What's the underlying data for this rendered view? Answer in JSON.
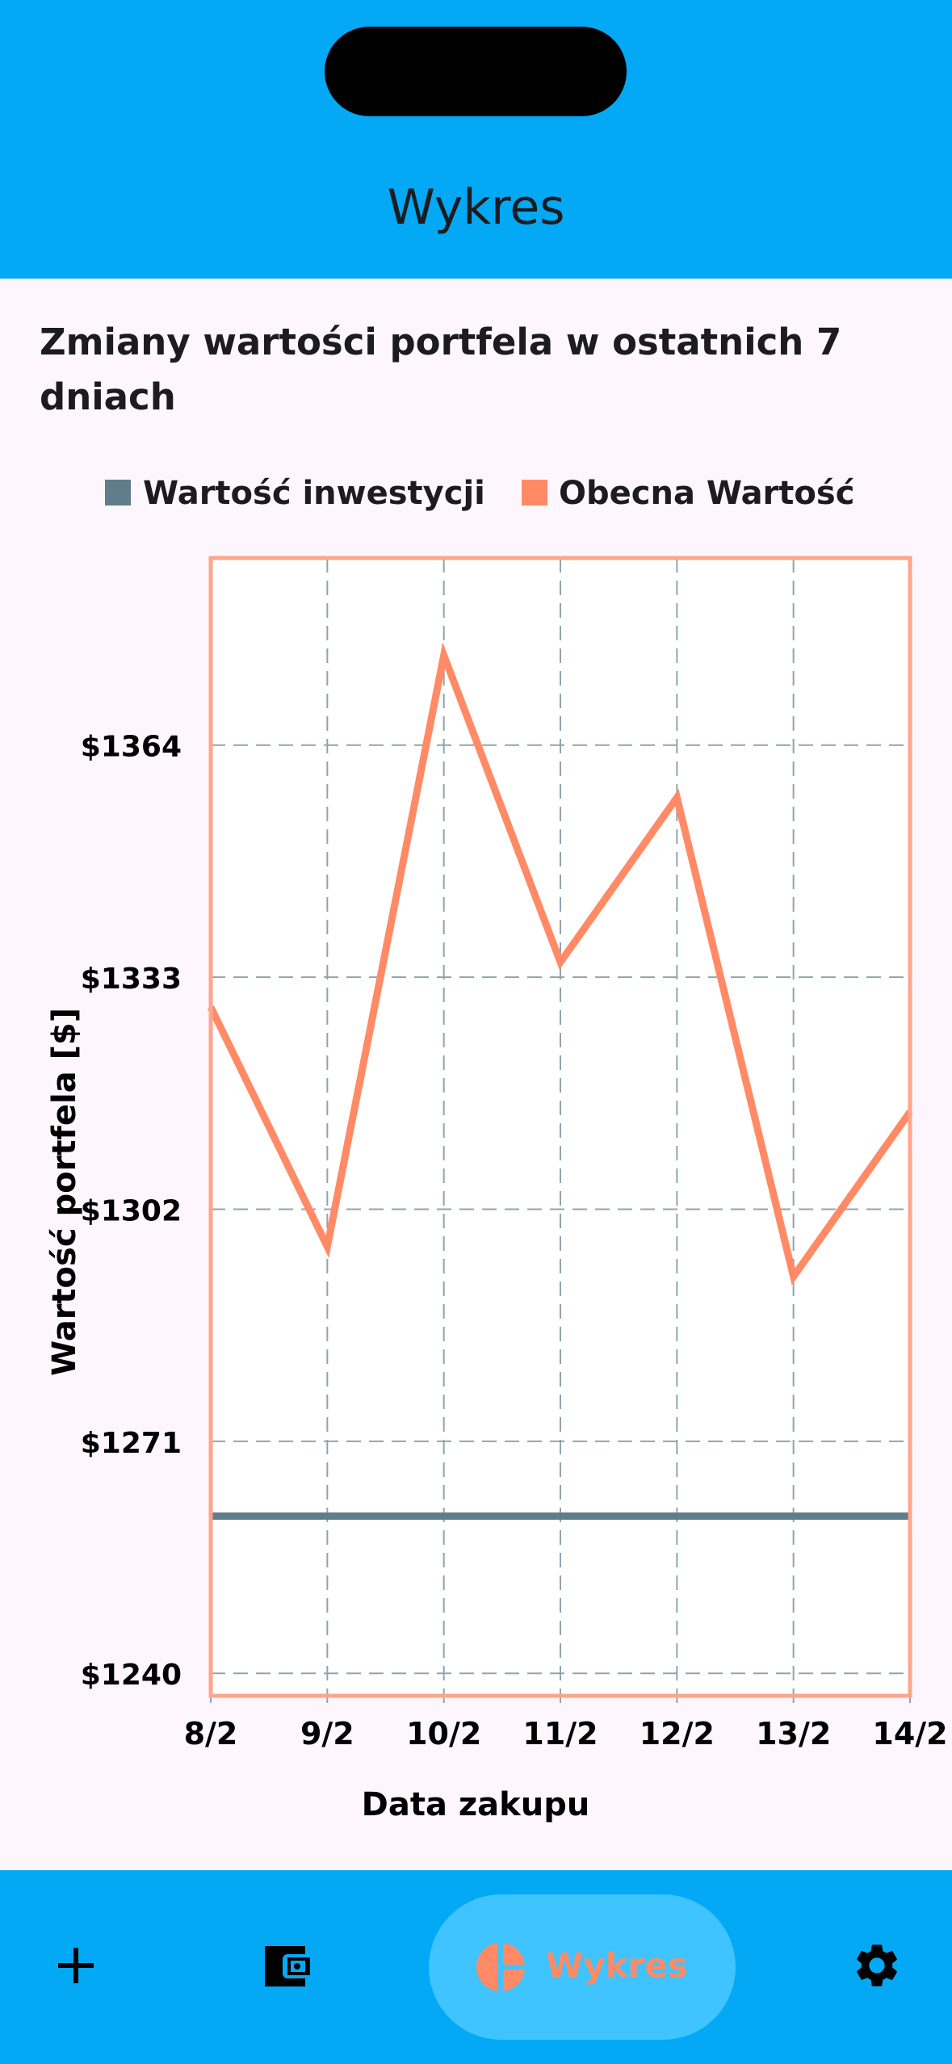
{
  "app": {
    "title": "Wykres"
  },
  "chart_title": "Zmiany wartości portfela w ostatnich 7 dniach",
  "chart_data": {
    "type": "line",
    "title": "Zmiany wartości portfela w ostatnich 7 dniach",
    "xlabel": "Data zakupu",
    "ylabel": "Wartość portfela [$]",
    "categories": [
      "8/2",
      "9/2",
      "10/2",
      "11/2",
      "12/2",
      "13/2",
      "14/2"
    ],
    "yticks": [
      1240,
      1271,
      1302,
      1333,
      1364
    ],
    "ytick_labels": [
      "$1240",
      "$1271",
      "$1302",
      "$1333",
      "$1364"
    ],
    "ylim": [
      1237,
      1389
    ],
    "grid": true,
    "legend_position": "top",
    "series": [
      {
        "name": "Wartość inwestycji",
        "color": "#607D8B",
        "values": [
          1261,
          1261,
          1261,
          1261,
          1261,
          1261,
          1261
        ]
      },
      {
        "name": "Obecna Wartość",
        "color": "#FF8A65",
        "values": [
          1329,
          1297,
          1376,
          1335,
          1357,
          1293,
          1315
        ]
      }
    ]
  },
  "nav": {
    "items": [
      {
        "name": "add-button",
        "icon": "plus-icon"
      },
      {
        "name": "wallet-button",
        "icon": "wallet-icon"
      },
      {
        "name": "chart-button",
        "icon": "pie-chart-icon",
        "label": "Wykres",
        "active": true
      },
      {
        "name": "settings-button",
        "icon": "gear-icon"
      }
    ],
    "active_label": "Wykres"
  },
  "colors": {
    "primary": "#03A9F4",
    "active_pill": "#40C4FF",
    "accent": "#FF8A65",
    "background": "#FDF7FD"
  }
}
